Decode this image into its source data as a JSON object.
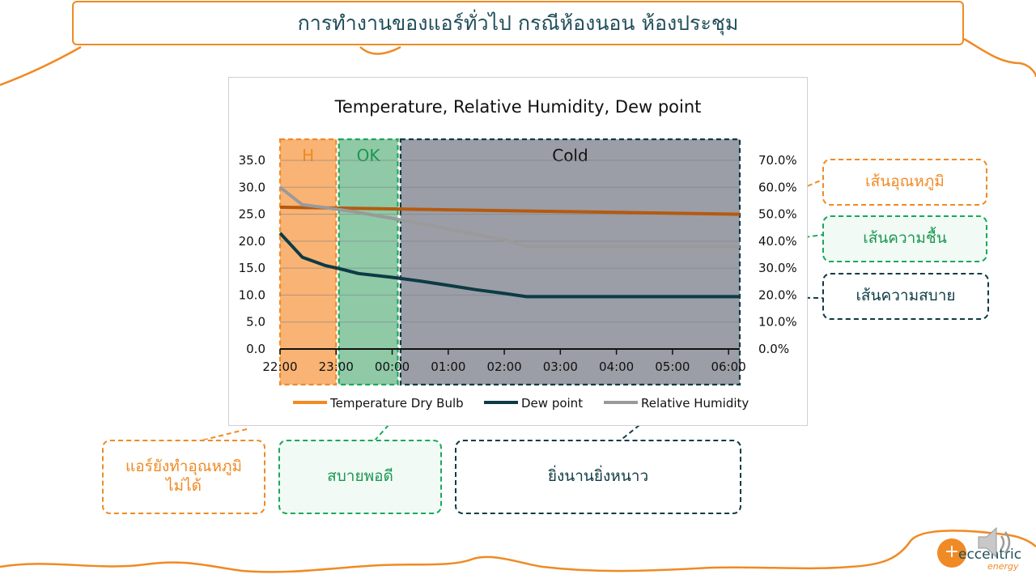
{
  "slide": {
    "title": "การทำงานของแอร์ทั่วไป กรณีห้องนอน ห้องประชุม"
  },
  "callouts": {
    "temp_line": "เส้นอุณหภูมิ",
    "humidity_line": "เส้นความชื้น",
    "comfort_line": "เส้นความสบาย",
    "zone_hot": "แอร์ยังทำอุณหภูมิ ไม่ได้",
    "zone_ok": "สบายพอดี",
    "zone_cold": "ยิ่งนานยิ่งหนาว"
  },
  "logo": {
    "text": "eccentric",
    "sub": "energy"
  },
  "colors": {
    "accent_orange": "#F08A24",
    "accent_green": "#1BA85A",
    "navy": "#0D3B45",
    "temp_line": "#B55A10",
    "dew_line": "#0D3B45",
    "rh_line": "#9A9A9A"
  },
  "icons": [
    "speaker-icon"
  ],
  "chart_data": {
    "type": "line",
    "title": "Temperature, Relative Humidity, Dew point",
    "x": [
      "22:00",
      "23:00",
      "00:00",
      "01:00",
      "02:00",
      "03:00",
      "04:00",
      "05:00",
      "06:00"
    ],
    "y_left": {
      "ticks": [
        "0.0",
        "5.0",
        "10.0",
        "15.0",
        "20.0",
        "25.0",
        "30.0",
        "35.0"
      ],
      "lim": [
        0,
        35
      ]
    },
    "y_right": {
      "ticks": [
        "0.0%",
        "10.0%",
        "20.0%",
        "30.0%",
        "40.0%",
        "50.0%",
        "60.0%",
        "70.0%"
      ],
      "lim": [
        0,
        70
      ]
    },
    "zones": [
      {
        "label": "H",
        "from": 0,
        "to": 1,
        "fill": "#F9B374",
        "border": "#F08A24",
        "text": "#F08A24"
      },
      {
        "label": "OK",
        "from": 1.05,
        "to": 2.1,
        "fill": "#8FC9A6",
        "border": "#1BA85A",
        "text": "#1A9850"
      },
      {
        "label": "Cold",
        "from": 2.15,
        "to": 8.2,
        "fill": "#9B9EA6",
        "border": "#0D3B45",
        "text": "#111111"
      }
    ],
    "series": [
      {
        "name": "Temperature Dry Bulb",
        "axis": "left",
        "color": "#B55A10",
        "points": [
          [
            0,
            26.3
          ],
          [
            8.2,
            25.0
          ]
        ]
      },
      {
        "name": "Dew point",
        "axis": "left",
        "color": "#0D3B45",
        "points": [
          [
            0,
            21.5
          ],
          [
            0.4,
            17.0
          ],
          [
            0.8,
            15.5
          ],
          [
            1.1,
            14.8
          ],
          [
            1.4,
            14.0
          ],
          [
            2.0,
            13.3
          ],
          [
            2.5,
            12.6
          ],
          [
            3.0,
            11.8
          ],
          [
            3.5,
            11.0
          ],
          [
            4.0,
            10.3
          ],
          [
            4.4,
            9.7
          ],
          [
            5.0,
            9.7
          ],
          [
            6.0,
            9.7
          ],
          [
            7.0,
            9.7
          ],
          [
            8.2,
            9.7
          ]
        ]
      },
      {
        "name": "Relative Humidity",
        "axis": "right",
        "color": "#9A9A9A",
        "points": [
          [
            0,
            60.0
          ],
          [
            0.4,
            53.5
          ],
          [
            0.8,
            52.5
          ],
          [
            1.3,
            51.0
          ],
          [
            2.0,
            48.5
          ],
          [
            2.5,
            46.5
          ],
          [
            3.0,
            44.5
          ],
          [
            3.5,
            42.5
          ],
          [
            4.0,
            40.5
          ],
          [
            4.4,
            38.0
          ],
          [
            5.0,
            38.0
          ],
          [
            6.0,
            38.0
          ],
          [
            7.0,
            38.0
          ],
          [
            8.2,
            38.0
          ]
        ]
      }
    ],
    "legend": {
      "placement": "bottom"
    }
  }
}
